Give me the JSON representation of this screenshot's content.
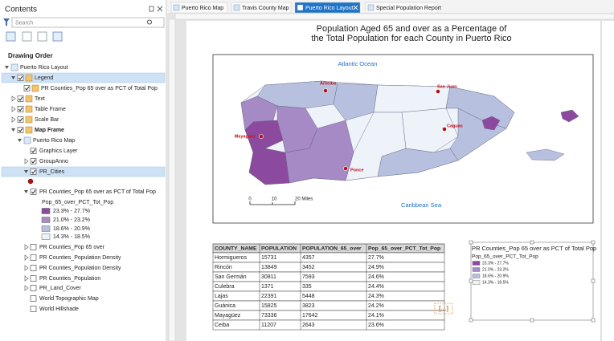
{
  "contents": {
    "title": "Contents",
    "search_placeholder": "Search",
    "section": "Drawing Order",
    "items": [
      "Puerto Rico Layout",
      "Legend",
      "PR Counties_Pop 65 over as PCT of Total Pop",
      "Text",
      "Table Frame",
      "Scale Bar",
      "Map Frame",
      "Puerto Rico Map",
      "Graphics Layer",
      "GroupAnno",
      "PR_Cities",
      "PR Counties_Pop 65 over as PCT of Total Pop",
      "Pop_65_over_PCT_Tot_Pop",
      "23.3% - 27.7%",
      "21.0% - 23.2%",
      "18.6% - 20.9%",
      "14.3% - 18.5%",
      "PR Counties_Pop 65 over",
      "PR Counties_Population Density",
      "PR Counties_Population Density",
      "PR Counties_Population",
      "PR_Land_Cover",
      "World Topographic Map",
      "World Hillshade"
    ]
  },
  "tabs": [
    "Puerto Rico Map",
    "Travis County Map",
    "Puerto Rico Layout",
    "Special Population Report"
  ],
  "layout": {
    "title_lines": [
      "Population Aged 65 and over as a Percentage of",
      "the Total Population for each County in Puerto Rico"
    ],
    "map": {
      "ocean_labels": [
        "Atlantic Ocean",
        "Caribbean Sea"
      ],
      "cities": [
        "Arecibo",
        "San Juan",
        "Caguas",
        "Mayaguez",
        "Ponce"
      ],
      "scale_labels": [
        "0",
        "10",
        "20 Miles"
      ]
    },
    "table": {
      "columns": [
        "COUNTY_NAME",
        "POPULATION",
        "POPULATION_65_over",
        "Pop_65_over_PCT_Tot_Pop"
      ],
      "rows": [
        [
          "Hormigueros",
          15731,
          4357,
          "27.7%"
        ],
        [
          "Rincón",
          13849,
          3452,
          "24.9%"
        ],
        [
          "San Germán",
          30811,
          7593,
          "24.6%"
        ],
        [
          "Culebra",
          1371,
          335,
          "24.4%"
        ],
        [
          "Lajas",
          22391,
          5448,
          "24.3%"
        ],
        [
          "Guánica",
          15825,
          3823,
          "24.2%"
        ],
        [
          "Mayagüez",
          73336,
          17642,
          "24.1%"
        ],
        [
          "Ceiba",
          11207,
          2643,
          "23.6%"
        ]
      ]
    },
    "legend": {
      "title": "PR Counties_Pop 65 over as PCT of Total Pop",
      "field": "Pop_65_over_PCT_Tot_Pop",
      "classes": [
        "23.3% - 27.7%",
        "21.0% - 23.2%",
        "18.6% - 20.9%",
        "14.3% - 18.5%"
      ],
      "colors": [
        "#8c4a9e",
        "#a58ac6",
        "#b8c0e0",
        "#eef2f9"
      ]
    },
    "more_indicator": "[...]"
  }
}
